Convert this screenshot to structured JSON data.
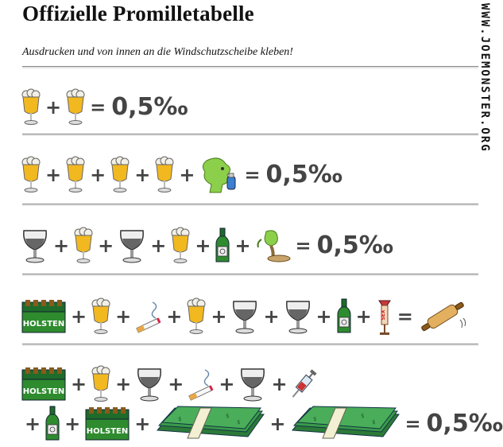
{
  "header": {
    "title": "Offizielle Promilletabelle",
    "subtitle": "Ausdrucken und von innen an die Windschutzscheibe kleben!",
    "brand": "WWW.JOEMONSTER.ORG"
  },
  "symbols": {
    "plus": "+",
    "equals": "=",
    "result": "0,5‰"
  },
  "labels": {
    "crate": "HOLSTEN",
    "sign": "SEX"
  },
  "rows": [
    {
      "items": [
        "beer-glass",
        "beer-glass"
      ],
      "result": "0,5‰"
    },
    {
      "items": [
        "beer-glass",
        "beer-glass",
        "beer-glass",
        "beer-glass",
        "person-eating"
      ],
      "result": "0,5‰"
    },
    {
      "items": [
        "wine-glass",
        "beer-glass",
        "wine-glass",
        "beer-glass",
        "bottle",
        "person-fainting"
      ],
      "result": "0,5‰"
    },
    {
      "items": [
        "beer-crate",
        "beer-glass",
        "cigarette",
        "beer-glass",
        "wine-glass",
        "wine-glass",
        "bottle",
        "sex-sign"
      ],
      "result": "rolling-pin"
    },
    {
      "items": [
        "beer-crate",
        "beer-glass",
        "wine-glass",
        "cigarette",
        "wine-glass",
        "syringe",
        "bottle",
        "beer-crate",
        "money-stack",
        "money-stack"
      ],
      "result": "0,5‰"
    }
  ],
  "colors": {
    "beer": "#f2b820",
    "foam": "#f2efe6",
    "green": "#2e8b2e",
    "money": "#3a9a4a",
    "operator": "#444444"
  }
}
